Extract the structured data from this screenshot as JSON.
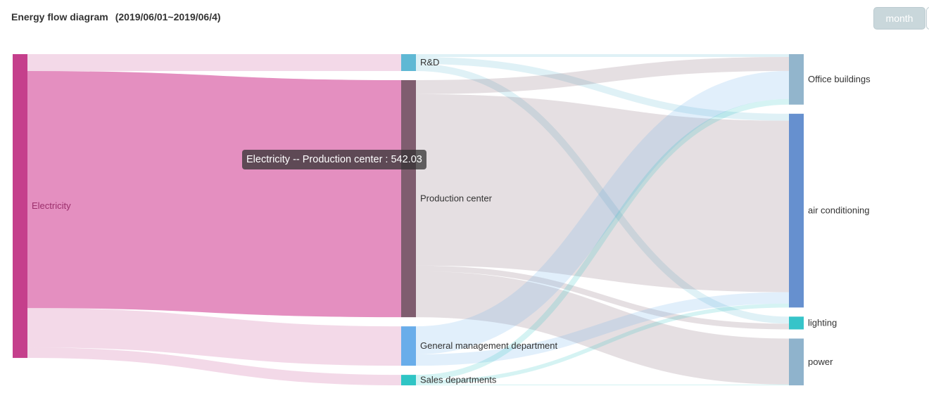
{
  "header": {
    "title": "Energy flow diagram",
    "date_range": "(2019/06/01~2019/06/4)",
    "month_button": "month"
  },
  "tooltip": {
    "text": "Electricity -- Production center : 542.03"
  },
  "chart_data": {
    "type": "sankey",
    "nodes": [
      {
        "name": "Electricity",
        "column": 0,
        "color": "#c53f8c"
      },
      {
        "name": "R&D",
        "column": 1,
        "color": "#5fb8d4"
      },
      {
        "name": "Production center",
        "column": 1,
        "color": "#7f5d6f"
      },
      {
        "name": "General management department",
        "column": 1,
        "color": "#69adea"
      },
      {
        "name": "Sales departments",
        "column": 1,
        "color": "#2fc5c5"
      },
      {
        "name": "Office buildings",
        "column": 2,
        "color": "#92b5cc"
      },
      {
        "name": "air conditioning",
        "column": 2,
        "color": "#6690cf"
      },
      {
        "name": "lighting",
        "column": 2,
        "color": "#36c4c9"
      },
      {
        "name": "power",
        "column": 2,
        "color": "#8fb3cc"
      }
    ],
    "links": [
      {
        "source": "Electricity",
        "target": "R&D",
        "value": 38.6
      },
      {
        "source": "Electricity",
        "target": "Production center",
        "value": 542.03,
        "highlighted": true
      },
      {
        "source": "Electricity",
        "target": "General management department",
        "value": 90
      },
      {
        "source": "Electricity",
        "target": "Sales departments",
        "value": 24
      },
      {
        "source": "R&D",
        "target": "Office buildings",
        "value": 6.4
      },
      {
        "source": "R&D",
        "target": "air conditioning",
        "value": 16
      },
      {
        "source": "R&D",
        "target": "lighting",
        "value": 16.2
      },
      {
        "source": "Production center",
        "target": "Office buildings",
        "value": 32
      },
      {
        "source": "Production center",
        "target": "air conditioning",
        "value": 392
      },
      {
        "source": "Production center",
        "target": "lighting",
        "value": 13
      },
      {
        "source": "Production center",
        "target": "power",
        "value": 105.03
      },
      {
        "source": "General management department",
        "target": "Office buildings",
        "value": 64
      },
      {
        "source": "General management department",
        "target": "air conditioning",
        "value": 26
      },
      {
        "source": "Sales departments",
        "target": "Office buildings",
        "value": 13
      },
      {
        "source": "Sales departments",
        "target": "air conditioning",
        "value": 9
      },
      {
        "source": "Sales departments",
        "target": "power",
        "value": 2
      }
    ]
  }
}
